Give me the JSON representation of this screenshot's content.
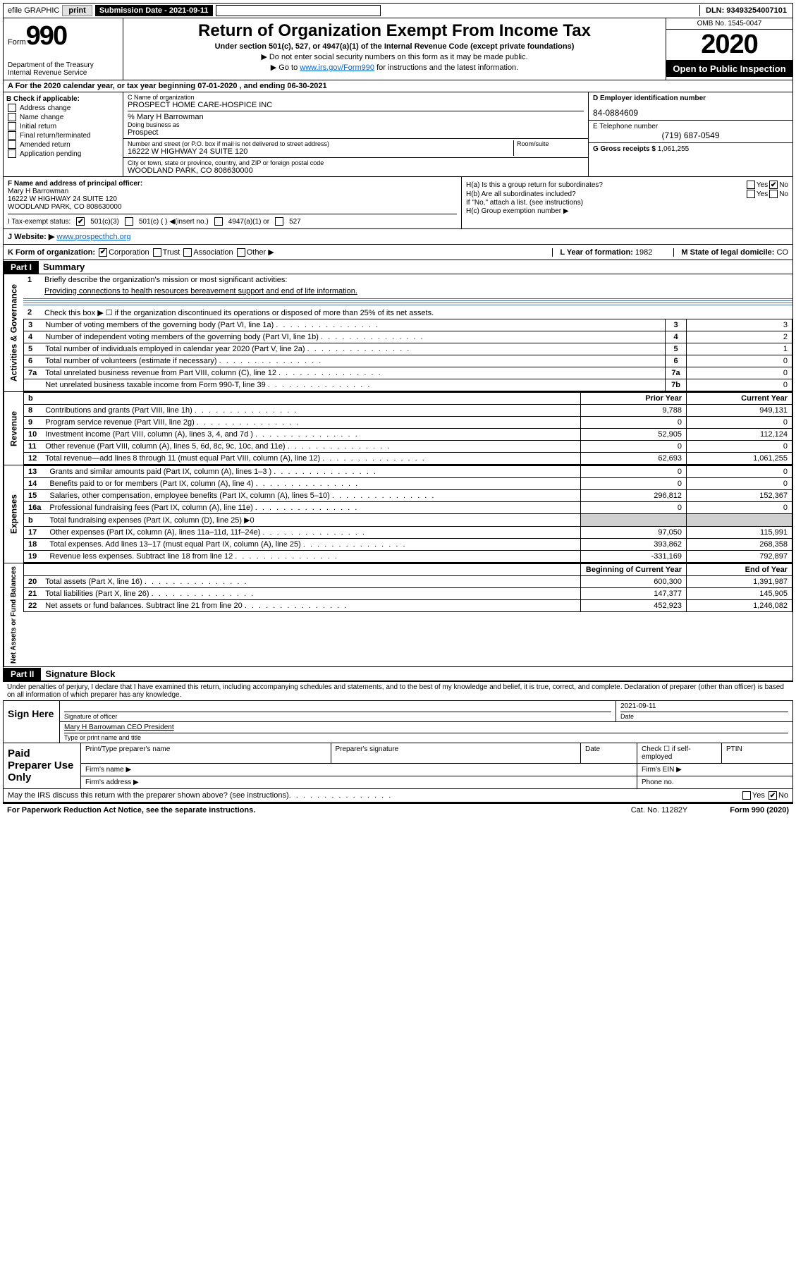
{
  "topbar": {
    "efile": "efile GRAPHIC",
    "print": "print",
    "sub_date_label": "Submission Date - 2021-09-11",
    "dln": "DLN: 93493254007101"
  },
  "header": {
    "form_word": "Form",
    "form_num": "990",
    "dept": "Department of the Treasury",
    "irs": "Internal Revenue Service",
    "title": "Return of Organization Exempt From Income Tax",
    "under": "Under section 501(c), 527, or 4947(a)(1) of the Internal Revenue Code (except private foundations)",
    "note1": "▶ Do not enter social security numbers on this form as it may be made public.",
    "note2_pre": "▶ Go to ",
    "note2_link": "www.irs.gov/Form990",
    "note2_post": " for instructions and the latest information.",
    "omb": "OMB No. 1545-0047",
    "year": "2020",
    "otp": "Open to Public Inspection"
  },
  "line_a": {
    "prefix": "A For the 2020 calendar year, or tax year beginning ",
    "begin": "07-01-2020",
    "mid": " , and ending ",
    "end": "06-30-2021"
  },
  "checkboxes": {
    "header": "B Check if applicable:",
    "addr": "Address change",
    "name": "Name change",
    "initial": "Initial return",
    "final": "Final return/terminated",
    "amended": "Amended return",
    "app": "Application pending"
  },
  "entity": {
    "name_lbl": "C Name of organization",
    "name": "PROSPECT HOME CARE-HOSPICE INC",
    "care_of": "% Mary H Barrowman",
    "dba_lbl": "Doing business as",
    "dba": "Prospect",
    "addr_lbl": "Number and street (or P.O. box if mail is not delivered to street address)",
    "room_lbl": "Room/suite",
    "addr": "16222 W HIGHWAY 24 SUITE 120",
    "city_lbl": "City or town, state or province, country, and ZIP or foreign postal code",
    "city": "WOODLAND PARK, CO  808630000"
  },
  "right_box": {
    "ein_lbl": "D Employer identification number",
    "ein": "84-0884609",
    "phone_lbl": "E Telephone number",
    "phone": "(719) 687-0549",
    "gross_lbl": "G Gross receipts $",
    "gross": "1,061,255"
  },
  "officer": {
    "lbl": "F Name and address of principal officer:",
    "name": "Mary H Barrowman",
    "addr1": "16222 W HIGHWAY 24 SUITE 120",
    "addr2": "WOODLAND PARK, CO  808630000"
  },
  "group": {
    "ha": "H(a)  Is this a group return for subordinates?",
    "hb": "H(b)  Are all subordinates included?",
    "hb_note": "If \"No,\" attach a list. (see instructions)",
    "hc": "H(c)  Group exemption number ▶"
  },
  "tax_status": {
    "lbl": "I  Tax-exempt status:",
    "c3": "501(c)(3)",
    "c_other": "501(c) (  ) ◀(insert no.)",
    "a1": "4947(a)(1) or",
    "s527": "527"
  },
  "website": {
    "lbl": "J  Website: ▶",
    "val": "www.prospecthch.org"
  },
  "korg": {
    "lbl": "K Form of organization:",
    "corp": "Corporation",
    "trust": "Trust",
    "assoc": "Association",
    "other": "Other ▶",
    "year_lbl": "L Year of formation:",
    "year": "1982",
    "state_lbl": "M State of legal domicile:",
    "state": "CO"
  },
  "part1": {
    "hdr": "Part I",
    "title": "Summary"
  },
  "governance": {
    "vtab": "Activities & Governance",
    "l1": "Briefly describe the organization's mission or most significant activities:",
    "l1_val": "Providing connections to health resources bereavement support and end of life information.",
    "l2": "Check this box ▶ ☐ if the organization discontinued its operations or disposed of more than 25% of its net assets.",
    "l3": "Number of voting members of the governing body (Part VI, line 1a)",
    "l3_v": "3",
    "l4": "Number of independent voting members of the governing body (Part VI, line 1b)",
    "l4_v": "2",
    "l5": "Total number of individuals employed in calendar year 2020 (Part V, line 2a)",
    "l5_v": "1",
    "l6": "Total number of volunteers (estimate if necessary)",
    "l6_v": "0",
    "l7a": "Total unrelated business revenue from Part VIII, column (C), line 12",
    "l7a_v": "0",
    "l7b": "Net unrelated business taxable income from Form 990-T, line 39",
    "l7b_v": "0"
  },
  "revenue": {
    "vtab": "Revenue",
    "hdr_prior": "Prior Year",
    "hdr_curr": "Current Year",
    "rows": [
      {
        "n": "8",
        "t": "Contributions and grants (Part VIII, line 1h)",
        "p": "9,788",
        "c": "949,131"
      },
      {
        "n": "9",
        "t": "Program service revenue (Part VIII, line 2g)",
        "p": "0",
        "c": "0"
      },
      {
        "n": "10",
        "t": "Investment income (Part VIII, column (A), lines 3, 4, and 7d )",
        "p": "52,905",
        "c": "112,124"
      },
      {
        "n": "11",
        "t": "Other revenue (Part VIII, column (A), lines 5, 6d, 8c, 9c, 10c, and 11e)",
        "p": "0",
        "c": "0"
      },
      {
        "n": "12",
        "t": "Total revenue—add lines 8 through 11 (must equal Part VIII, column (A), line 12)",
        "p": "62,693",
        "c": "1,061,255"
      }
    ]
  },
  "expenses": {
    "vtab": "Expenses",
    "rows": [
      {
        "n": "13",
        "t": "Grants and similar amounts paid (Part IX, column (A), lines 1–3 )",
        "p": "0",
        "c": "0"
      },
      {
        "n": "14",
        "t": "Benefits paid to or for members (Part IX, column (A), line 4)",
        "p": "0",
        "c": "0"
      },
      {
        "n": "15",
        "t": "Salaries, other compensation, employee benefits (Part IX, column (A), lines 5–10)",
        "p": "296,812",
        "c": "152,367"
      },
      {
        "n": "16a",
        "t": "Professional fundraising fees (Part IX, column (A), line 11e)",
        "p": "0",
        "c": "0"
      },
      {
        "n": "b",
        "t": "Total fundraising expenses (Part IX, column (D), line 25) ▶0",
        "p": "",
        "c": "",
        "shade": true
      },
      {
        "n": "17",
        "t": "Other expenses (Part IX, column (A), lines 11a–11d, 11f–24e)",
        "p": "97,050",
        "c": "115,991"
      },
      {
        "n": "18",
        "t": "Total expenses. Add lines 13–17 (must equal Part IX, column (A), line 25)",
        "p": "393,862",
        "c": "268,358"
      },
      {
        "n": "19",
        "t": "Revenue less expenses. Subtract line 18 from line 12",
        "p": "-331,169",
        "c": "792,897"
      }
    ]
  },
  "netassets": {
    "vtab": "Net Assets or Fund Balances",
    "hdr_begin": "Beginning of Current Year",
    "hdr_end": "End of Year",
    "rows": [
      {
        "n": "20",
        "t": "Total assets (Part X, line 16)",
        "p": "600,300",
        "c": "1,391,987"
      },
      {
        "n": "21",
        "t": "Total liabilities (Part X, line 26)",
        "p": "147,377",
        "c": "145,905"
      },
      {
        "n": "22",
        "t": "Net assets or fund balances. Subtract line 21 from line 20",
        "p": "452,923",
        "c": "1,246,082"
      }
    ]
  },
  "part2": {
    "hdr": "Part II",
    "title": "Signature Block"
  },
  "sig": {
    "penalty": "Under penalties of perjury, I declare that I have examined this return, including accompanying schedules and statements, and to the best of my knowledge and belief, it is true, correct, and complete. Declaration of preparer (other than officer) is based on all information of which preparer has any knowledge.",
    "sign_here": "Sign Here",
    "sig_officer": "Signature of officer",
    "date_val": "2021-09-11",
    "date_lbl": "Date",
    "printed": "Mary H Barrowman CEO President",
    "printed_lbl": "Type or print name and title"
  },
  "prep": {
    "title": "Paid Preparer Use Only",
    "name_lbl": "Print/Type preparer's name",
    "sig_lbl": "Preparer's signature",
    "date_lbl": "Date",
    "self_emp": "Check ☐ if self-employed",
    "ptin": "PTIN",
    "firm_name": "Firm's name  ▶",
    "firm_ein": "Firm's EIN ▶",
    "firm_addr": "Firm's address ▶",
    "phone": "Phone no."
  },
  "discuss": {
    "txt": "May the IRS discuss this return with the preparer shown above? (see instructions)",
    "yes": "Yes",
    "no": "No"
  },
  "footer": {
    "left": "For Paperwork Reduction Act Notice, see the separate instructions.",
    "mid": "Cat. No. 11282Y",
    "right": "Form 990 (2020)"
  },
  "colors": {
    "rule": "#4a6aa5",
    "link": "#0066cc",
    "shade": "#d0d0d0"
  }
}
